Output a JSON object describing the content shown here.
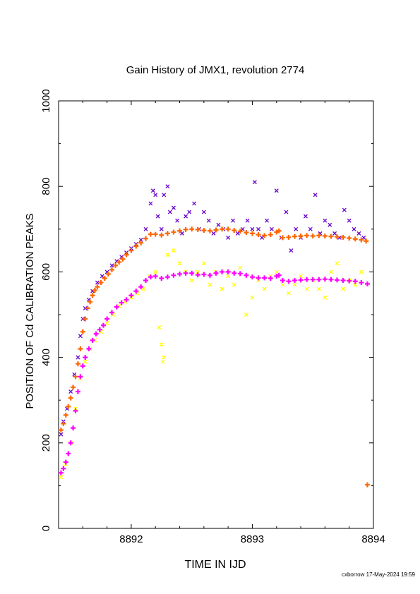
{
  "chart_data": {
    "type": "scatter",
    "title": "Gain History of JMX1, revolution 2774",
    "xlabel": "TIME IN IJD",
    "ylabel": "POSITION OF Cd CALIBRATION PEAKS",
    "xlim": [
      8891.4,
      8894.0
    ],
    "ylim": [
      0,
      1000
    ],
    "x_ticks": [
      "8892",
      "8893",
      "8894"
    ],
    "y_ticks": [
      "0",
      "200",
      "400",
      "600",
      "800",
      "1000"
    ],
    "grid": false,
    "footer": "cxborrow 17-May-2024 19:59",
    "series": [
      {
        "color": "#6600cc",
        "marker": "x",
        "x": [
          8891.42,
          8891.44,
          8891.47,
          8891.5,
          8891.53,
          8891.56,
          8891.58,
          8891.6,
          8891.62,
          8891.65,
          8891.68,
          8891.72,
          8891.76,
          8891.8,
          8891.84,
          8891.88,
          8891.92,
          8891.96,
          8892.0,
          8892.04,
          8892.08,
          8892.12,
          8892.16,
          8892.18,
          8892.2,
          8892.22,
          8892.25,
          8892.27,
          8892.3,
          8892.32,
          8892.35,
          8892.38,
          8892.42,
          8892.45,
          8892.48,
          8892.52,
          8892.56,
          8892.6,
          8892.64,
          8892.68,
          8892.72,
          8892.76,
          8892.8,
          8892.84,
          8892.88,
          8892.92,
          8892.96,
          8893.0,
          8893.02,
          8893.05,
          8893.08,
          8893.12,
          8893.16,
          8893.2,
          8893.24,
          8893.28,
          8893.32,
          8893.36,
          8893.4,
          8893.44,
          8893.48,
          8893.52,
          8893.56,
          8893.6,
          8893.64,
          8893.68,
          8893.72,
          8893.76,
          8893.8,
          8893.84,
          8893.88,
          8893.92
        ],
        "y": [
          220,
          250,
          280,
          320,
          360,
          400,
          450,
          490,
          515,
          535,
          555,
          575,
          590,
          600,
          615,
          625,
          635,
          645,
          655,
          665,
          675,
          700,
          760,
          790,
          780,
          730,
          700,
          780,
          800,
          740,
          750,
          720,
          690,
          730,
          740,
          760,
          700,
          740,
          720,
          690,
          710,
          700,
          680,
          720,
          690,
          700,
          720,
          700,
          810,
          700,
          680,
          720,
          700,
          790,
          680,
          740,
          650,
          700,
          680,
          730,
          700,
          780,
          690,
          720,
          710,
          690,
          680,
          745,
          720,
          700,
          690,
          680
        ]
      },
      {
        "color": "#ff6600",
        "marker": "+",
        "x": [
          8891.42,
          8891.44,
          8891.46,
          8891.48,
          8891.5,
          8891.52,
          8891.54,
          8891.56,
          8891.58,
          8891.6,
          8891.62,
          8891.64,
          8891.66,
          8891.68,
          8891.7,
          8891.72,
          8891.75,
          8891.78,
          8891.81,
          8891.84,
          8891.87,
          8891.9,
          8891.93,
          8891.96,
          8892.0,
          8892.04,
          8892.08,
          8892.12,
          8892.16,
          8892.2,
          8892.25,
          8892.3,
          8892.35,
          8892.4,
          8892.45,
          8892.5,
          8892.55,
          8892.6,
          8892.65,
          8892.7,
          8892.75,
          8892.8,
          8892.85,
          8892.9,
          8892.95,
          8893.0,
          8893.05,
          8893.1,
          8893.15,
          8893.2,
          8893.22,
          8893.25,
          8893.3,
          8893.35,
          8893.4,
          8893.45,
          8893.5,
          8893.55,
          8893.6,
          8893.65,
          8893.7,
          8893.75,
          8893.8,
          8893.85,
          8893.9,
          8893.94,
          8893.95
        ],
        "y": [
          230,
          245,
          265,
          285,
          305,
          330,
          355,
          385,
          420,
          460,
          490,
          515,
          530,
          545,
          557,
          565,
          575,
          585,
          595,
          605,
          615,
          623,
          630,
          640,
          650,
          660,
          668,
          678,
          688,
          688,
          686,
          690,
          693,
          696,
          699,
          700,
          699,
          697,
          696,
          698,
          700,
          700,
          697,
          695,
          692,
          690,
          687,
          685,
          687,
          693,
          696,
          680,
          681,
          683,
          684,
          685,
          684,
          685,
          684,
          683,
          682,
          681,
          679,
          677,
          675,
          672,
          102
        ]
      },
      {
        "color": "#ffff00",
        "marker": "x",
        "x": [
          8891.42,
          8891.46,
          8891.5,
          8891.54,
          8891.58,
          8891.62,
          8891.66,
          8891.7,
          8891.75,
          8891.8,
          8891.85,
          8891.9,
          8891.95,
          8892.0,
          8892.05,
          8892.1,
          8892.15,
          8892.2,
          8892.23,
          8892.25,
          8892.26,
          8892.27,
          8892.3,
          8892.35,
          8892.4,
          8892.45,
          8892.5,
          8892.55,
          8892.6,
          8892.65,
          8892.7,
          8892.75,
          8892.8,
          8892.85,
          8892.9,
          8892.95,
          8893.0,
          8893.05,
          8893.1,
          8893.15,
          8893.2,
          8893.25,
          8893.3,
          8893.35,
          8893.4,
          8893.45,
          8893.5,
          8893.55,
          8893.6,
          8893.65,
          8893.7,
          8893.75,
          8893.8,
          8893.85,
          8893.9
        ],
        "y": [
          120,
          150,
          200,
          280,
          350,
          390,
          420,
          440,
          460,
          480,
          500,
          520,
          530,
          540,
          550,
          560,
          590,
          600,
          470,
          430,
          390,
          400,
          640,
          650,
          620,
          600,
          580,
          600,
          620,
          570,
          600,
          560,
          590,
          570,
          610,
          500,
          540,
          580,
          560,
          590,
          600,
          570,
          550,
          570,
          590,
          560,
          580,
          560,
          540,
          600,
          620,
          560,
          580,
          570,
          600
        ]
      },
      {
        "color": "#ff00ff",
        "marker": "+",
        "x": [
          8891.42,
          8891.44,
          8891.46,
          8891.48,
          8891.5,
          8891.52,
          8891.54,
          8891.56,
          8891.58,
          8891.6,
          8891.62,
          8891.65,
          8891.68,
          8891.71,
          8891.74,
          8891.77,
          8891.8,
          8891.84,
          8891.88,
          8891.92,
          8891.96,
          8892.0,
          8892.04,
          8892.08,
          8892.12,
          8892.16,
          8892.2,
          8892.25,
          8892.3,
          8892.35,
          8892.4,
          8892.45,
          8892.5,
          8892.55,
          8892.6,
          8892.65,
          8892.7,
          8892.75,
          8892.8,
          8892.85,
          8892.9,
          8892.95,
          8893.0,
          8893.05,
          8893.1,
          8893.15,
          8893.2,
          8893.22,
          8893.25,
          8893.3,
          8893.35,
          8893.4,
          8893.45,
          8893.5,
          8893.55,
          8893.6,
          8893.65,
          8893.7,
          8893.75,
          8893.8,
          8893.85,
          8893.9,
          8893.95
        ],
        "y": [
          130,
          140,
          155,
          175,
          200,
          235,
          275,
          320,
          355,
          380,
          400,
          420,
          440,
          455,
          465,
          475,
          490,
          505,
          518,
          528,
          535,
          545,
          555,
          565,
          580,
          588,
          590,
          585,
          588,
          592,
          595,
          597,
          597,
          593,
          594,
          592,
          597,
          600,
          600,
          597,
          596,
          592,
          588,
          586,
          586,
          585,
          590,
          592,
          580,
          578,
          580,
          581,
          582,
          582,
          582,
          583,
          582,
          581,
          580,
          579,
          578,
          575,
          572
        ]
      }
    ]
  }
}
